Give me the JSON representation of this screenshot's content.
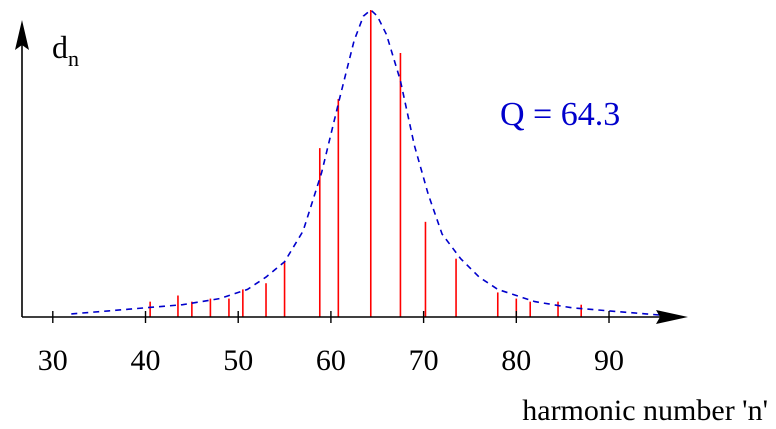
{
  "chart_data": {
    "type": "bar",
    "xlabel": "harmonic number 'n'",
    "ylabel": "d",
    "ylabel_sub": "n",
    "annotation": "Q = 64.3",
    "xlim": [
      27,
      98
    ],
    "ylim": [
      0,
      1
    ],
    "xticks": [
      30,
      40,
      50,
      60,
      70,
      80,
      90
    ],
    "grid": false,
    "colors": {
      "bars": "#ff0000",
      "envelope": "#0000cc",
      "annotation": "#0000cc",
      "axis": "#000000"
    },
    "series": [
      {
        "type": "stem",
        "x": [
          40.5,
          43.5,
          45,
          47,
          49,
          50.5,
          53,
          55,
          58.8,
          60.8,
          64.3,
          67.5,
          70.2,
          73.5,
          78,
          80,
          81.5,
          84.5,
          87
        ],
        "values": [
          0.05,
          0.07,
          0.05,
          0.06,
          0.06,
          0.09,
          0.11,
          0.18,
          0.55,
          0.71,
          1.0,
          0.86,
          0.31,
          0.19,
          0.08,
          0.06,
          0.05,
          0.05,
          0.04
        ]
      },
      {
        "type": "dashed-line",
        "x": [
          32,
          36,
          40,
          44,
          48,
          51,
          53,
          55,
          57,
          59,
          61,
          62.5,
          63.5,
          64.3,
          65,
          66,
          67.5,
          69,
          70.5,
          72,
          74,
          76,
          78,
          82,
          86,
          90,
          94,
          98
        ],
        "values": [
          0.01,
          0.02,
          0.03,
          0.04,
          0.06,
          0.09,
          0.13,
          0.18,
          0.28,
          0.47,
          0.72,
          0.9,
          0.98,
          1.0,
          0.98,
          0.92,
          0.77,
          0.56,
          0.4,
          0.27,
          0.19,
          0.13,
          0.09,
          0.05,
          0.03,
          0.02,
          0.01,
          0.0
        ]
      }
    ]
  }
}
